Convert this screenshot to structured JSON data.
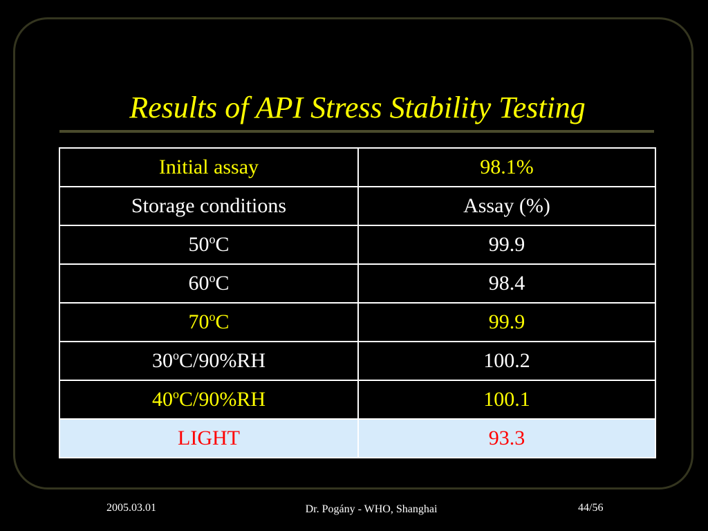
{
  "slide": {
    "title": "Results of API Stress Stability Testing",
    "colors": {
      "title": "#ffff00",
      "text": "#ffffff",
      "highlight": "#ffff00",
      "alert": "#ff0000",
      "alert_bg": "#d7ebfb",
      "background": "#000000"
    }
  },
  "table": {
    "rows": [
      {
        "label": "Initial assay",
        "value": "98.1%",
        "style": "yellow"
      },
      {
        "label": "Storage conditions",
        "value": "Assay (%)",
        "style": "white"
      },
      {
        "label_pre": "50",
        "label_sup": "o",
        "label_post": "C",
        "value": "99.9",
        "style": "white"
      },
      {
        "label_pre": "60",
        "label_sup": "o",
        "label_post": "C",
        "value": "98.4",
        "style": "white"
      },
      {
        "label_pre": "70",
        "label_sup": "o",
        "label_post": "C",
        "value": "99.9",
        "style": "yellow"
      },
      {
        "label_pre": "30",
        "label_sup": "o",
        "label_post": "C/90%RH",
        "value": "100.2",
        "style": "white"
      },
      {
        "label_pre": "40",
        "label_sup": "o",
        "label_post": "C/90%RH",
        "value": "100.1",
        "style": "yellow"
      },
      {
        "label": "LIGHT",
        "value": "93.3",
        "style": "red"
      }
    ]
  },
  "footer": {
    "date": "2005.03.01",
    "author": "Dr. Pogány - WHO, Shanghai",
    "page": "44/56"
  }
}
